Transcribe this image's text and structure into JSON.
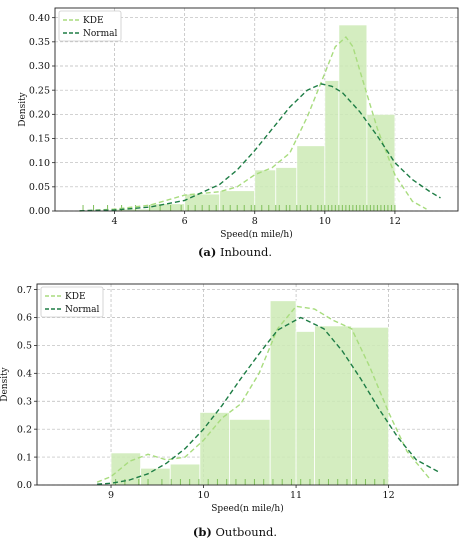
{
  "colors": {
    "kde": "#a8dc7e",
    "normal": "#1e7d45",
    "hist_fill": "#cdeab6",
    "rug": "#7fbf5a",
    "grid": "#b8b8b8"
  },
  "chart_data": [
    {
      "type": "bar",
      "panel": "a",
      "caption_label": "(a)",
      "caption_text": " Inbound.",
      "xlabel": "Speed(n mile/h)",
      "ylabel": "Density",
      "xlim": [
        2.3,
        13.8
      ],
      "ylim": [
        0,
        0.42
      ],
      "xticks": [
        4,
        6,
        8,
        10,
        12
      ],
      "yticks": [
        0.0,
        0.05,
        0.1,
        0.15,
        0.2,
        0.25,
        0.3,
        0.35,
        0.4
      ],
      "ytick_labels": [
        "0.00",
        "0.05",
        "0.10",
        "0.15",
        "0.20",
        "0.25",
        "0.30",
        "0.35",
        "0.40"
      ],
      "grid": true,
      "legend_position": "top-left",
      "legend": [
        "KDE",
        "Normal"
      ],
      "histogram": {
        "edges": [
          3.0,
          4.0,
          5.0,
          6.0,
          7.0,
          8.0,
          8.6,
          9.2,
          10.0,
          10.4,
          11.2,
          12.0
        ],
        "heights": [
          0.0,
          0.004,
          0.015,
          0.035,
          0.042,
          0.085,
          0.09,
          0.135,
          0.27,
          0.385,
          0.2
        ]
      },
      "kde": {
        "x": [
          3.0,
          4.0,
          5.0,
          6.0,
          7.0,
          7.5,
          8.0,
          8.5,
          9.0,
          9.5,
          10.0,
          10.3,
          10.6,
          10.8,
          11.0,
          11.5,
          12.0,
          12.5,
          12.9
        ],
        "y": [
          0.0,
          0.004,
          0.012,
          0.033,
          0.04,
          0.05,
          0.075,
          0.09,
          0.12,
          0.195,
          0.285,
          0.34,
          0.36,
          0.34,
          0.29,
          0.17,
          0.075,
          0.02,
          0.004
        ]
      },
      "normal": {
        "x": [
          3.0,
          4.0,
          5.0,
          6.0,
          7.0,
          7.5,
          8.0,
          8.5,
          9.0,
          9.5,
          9.9,
          10.2,
          10.5,
          11.0,
          11.5,
          12.0,
          12.5,
          13.0,
          13.3
        ],
        "y": [
          0.0005,
          0.002,
          0.008,
          0.022,
          0.055,
          0.085,
          0.125,
          0.17,
          0.215,
          0.25,
          0.263,
          0.258,
          0.245,
          0.205,
          0.155,
          0.1,
          0.065,
          0.04,
          0.027
        ]
      },
      "rug": [
        3.1,
        3.4,
        3.8,
        4.2,
        4.6,
        5.0,
        5.3,
        5.6,
        5.9,
        6.1,
        6.3,
        6.5,
        6.7,
        6.9,
        7.1,
        7.3,
        7.5,
        7.7,
        7.9,
        8.0,
        8.2,
        8.4,
        8.6,
        8.7,
        8.9,
        9.0,
        9.2,
        9.3,
        9.5,
        9.6,
        9.8,
        9.9,
        10.0,
        10.1,
        10.2,
        10.3,
        10.4,
        10.5,
        10.6,
        10.7,
        10.8,
        10.9,
        11.0,
        11.1,
        11.2,
        11.3,
        11.4,
        11.5,
        11.6,
        11.7,
        11.8,
        11.9,
        12.0
      ]
    },
    {
      "type": "bar",
      "panel": "b",
      "caption_label": "(b)",
      "caption_text": " Outbound.",
      "xlabel": "Speed(n mile/h)",
      "ylabel": "Density",
      "xlim": [
        8.2,
        12.75
      ],
      "ylim": [
        0,
        0.72
      ],
      "xticks": [
        9,
        10,
        11,
        12
      ],
      "yticks": [
        0.0,
        0.1,
        0.2,
        0.3,
        0.4,
        0.5,
        0.6,
        0.7
      ],
      "ytick_labels": [
        "0.0",
        "0.1",
        "0.2",
        "0.3",
        "0.4",
        "0.5",
        "0.6",
        "0.7"
      ],
      "grid": true,
      "legend_position": "top-left",
      "legend": [
        "KDE",
        "Normal"
      ],
      "histogram": {
        "edges": [
          9.0,
          9.32,
          9.64,
          9.96,
          10.28,
          10.72,
          11.0,
          11.2,
          11.6,
          12.0
        ],
        "heights": [
          0.115,
          0.06,
          0.075,
          0.26,
          0.235,
          0.66,
          0.55,
          0.57,
          0.565
        ]
      },
      "kde": {
        "x": [
          8.85,
          9.0,
          9.2,
          9.4,
          9.6,
          9.8,
          10.0,
          10.2,
          10.4,
          10.6,
          10.8,
          11.0,
          11.2,
          11.4,
          11.6,
          11.8,
          12.0,
          12.2,
          12.45
        ],
        "y": [
          0.01,
          0.03,
          0.085,
          0.11,
          0.09,
          0.1,
          0.16,
          0.24,
          0.29,
          0.4,
          0.56,
          0.64,
          0.63,
          0.59,
          0.56,
          0.42,
          0.26,
          0.12,
          0.02
        ]
      },
      "normal": {
        "x": [
          8.85,
          9.0,
          9.2,
          9.4,
          9.6,
          9.8,
          10.0,
          10.2,
          10.4,
          10.6,
          10.8,
          11.05,
          11.3,
          11.5,
          11.7,
          11.9,
          12.1,
          12.3,
          12.55
        ],
        "y": [
          0.003,
          0.006,
          0.018,
          0.04,
          0.078,
          0.13,
          0.2,
          0.285,
          0.38,
          0.47,
          0.555,
          0.6,
          0.56,
          0.48,
          0.38,
          0.27,
          0.17,
          0.09,
          0.045
        ]
      },
      "rug": [
        9.05,
        9.15,
        9.3,
        9.4,
        9.55,
        9.65,
        9.75,
        9.85,
        9.95,
        10.05,
        10.15,
        10.25,
        10.35,
        10.45,
        10.55,
        10.65,
        10.75,
        10.85,
        10.95,
        11.05,
        11.15,
        11.25,
        11.35,
        11.45,
        11.55,
        11.65,
        11.75,
        11.85,
        11.95
      ]
    }
  ]
}
